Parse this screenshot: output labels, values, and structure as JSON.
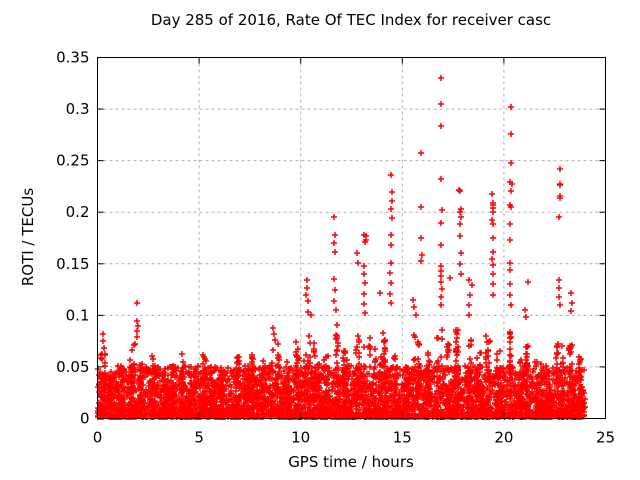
{
  "chart_data": {
    "type": "scatter",
    "title": "Day 285 of 2016, Rate Of TEC Index for receiver casc",
    "xlabel": "GPS time / hours",
    "ylabel": "ROTI / TECUs",
    "xlim": [
      0,
      25
    ],
    "ylim": [
      0,
      0.35
    ],
    "xticks": [
      0,
      5,
      10,
      15,
      20,
      25
    ],
    "xtick_labels": [
      "0",
      "5",
      "10",
      "15",
      "20",
      "25"
    ],
    "yticks": [
      0,
      0.05,
      0.1,
      0.15,
      0.2,
      0.25,
      0.3,
      0.35
    ],
    "ytick_labels": [
      "0",
      "0.05",
      "0.1",
      "0.15",
      "0.2",
      "0.25",
      "0.3",
      "0.35"
    ],
    "grid": true,
    "grid_style": "dashed",
    "legend_position": "none",
    "marker": "plus",
    "marker_color": "#ff0000",
    "grid_color": "#b0b0b0",
    "axis_color": "#000000",
    "background_color": "#ffffff",
    "x_data_range": [
      0,
      24
    ],
    "bin_width": 0.5,
    "points_per_bin": 110,
    "seed": 285,
    "density_envelope": [
      0.062,
      0.045,
      0.05,
      0.072,
      0.055,
      0.062,
      0.048,
      0.055,
      0.065,
      0.05,
      0.063,
      0.055,
      0.048,
      0.06,
      0.052,
      0.062,
      0.058,
      0.072,
      0.055,
      0.065,
      0.08,
      0.075,
      0.062,
      0.09,
      0.065,
      0.08,
      0.078,
      0.068,
      0.085,
      0.062,
      0.055,
      0.08,
      0.065,
      0.095,
      0.078,
      0.085,
      0.075,
      0.065,
      0.08,
      0.068,
      0.085,
      0.06,
      0.075,
      0.058,
      0.052,
      0.075,
      0.082,
      0.062
    ],
    "outliers": [
      [
        0.25,
        0.082
      ],
      [
        0.27,
        0.075
      ],
      [
        0.3,
        0.068
      ],
      [
        1.95,
        0.112
      ],
      [
        1.92,
        0.095
      ],
      [
        1.97,
        0.09
      ],
      [
        1.95,
        0.085
      ],
      [
        1.93,
        0.079
      ],
      [
        8.65,
        0.088
      ],
      [
        8.7,
        0.082
      ],
      [
        8.75,
        0.076
      ],
      [
        9.75,
        0.074
      ],
      [
        9.85,
        0.067
      ],
      [
        10.3,
        0.134
      ],
      [
        10.32,
        0.127
      ],
      [
        10.28,
        0.12
      ],
      [
        10.35,
        0.114
      ],
      [
        10.38,
        0.103
      ],
      [
        10.5,
        0.1
      ],
      [
        11.66,
        0.195
      ],
      [
        11.68,
        0.178
      ],
      [
        11.66,
        0.17
      ],
      [
        11.7,
        0.161
      ],
      [
        11.66,
        0.135
      ],
      [
        11.68,
        0.125
      ],
      [
        11.66,
        0.114
      ],
      [
        11.72,
        0.105
      ],
      [
        12.79,
        0.16
      ],
      [
        12.84,
        0.151
      ],
      [
        13.1,
        0.178
      ],
      [
        13.14,
        0.171
      ],
      [
        13.22,
        0.177
      ],
      [
        13.2,
        0.173
      ],
      [
        13.12,
        0.148
      ],
      [
        13.1,
        0.14
      ],
      [
        13.15,
        0.131
      ],
      [
        13.13,
        0.121
      ],
      [
        13.1,
        0.111
      ],
      [
        13.16,
        0.102
      ],
      [
        13.9,
        0.122
      ],
      [
        14.45,
        0.236
      ],
      [
        14.47,
        0.22
      ],
      [
        14.47,
        0.211
      ],
      [
        14.45,
        0.203
      ],
      [
        14.47,
        0.194
      ],
      [
        14.44,
        0.178
      ],
      [
        14.46,
        0.168
      ],
      [
        14.42,
        0.151
      ],
      [
        14.4,
        0.141
      ],
      [
        14.42,
        0.131
      ],
      [
        14.4,
        0.121
      ],
      [
        14.43,
        0.112
      ],
      [
        15.55,
        0.115
      ],
      [
        15.6,
        0.108
      ],
      [
        15.65,
        0.1
      ],
      [
        15.9,
        0.257
      ],
      [
        15.92,
        0.205
      ],
      [
        15.9,
        0.175
      ],
      [
        15.95,
        0.159
      ],
      [
        15.93,
        0.153
      ],
      [
        16.9,
        0.33
      ],
      [
        16.92,
        0.305
      ],
      [
        16.9,
        0.284
      ],
      [
        16.9,
        0.232
      ],
      [
        16.93,
        0.202
      ],
      [
        16.9,
        0.19
      ],
      [
        16.88,
        0.168
      ],
      [
        16.9,
        0.148
      ],
      [
        16.92,
        0.143
      ],
      [
        16.88,
        0.138
      ],
      [
        16.9,
        0.132
      ],
      [
        16.93,
        0.126
      ],
      [
        16.9,
        0.118
      ],
      [
        16.9,
        0.11
      ],
      [
        17.37,
        0.136
      ],
      [
        17.8,
        0.222
      ],
      [
        17.86,
        0.221
      ],
      [
        17.88,
        0.203
      ],
      [
        17.9,
        0.195
      ],
      [
        17.86,
        0.2
      ],
      [
        17.84,
        0.189
      ],
      [
        17.86,
        0.177
      ],
      [
        17.88,
        0.16
      ],
      [
        17.85,
        0.15
      ],
      [
        17.87,
        0.14
      ],
      [
        18.3,
        0.134
      ],
      [
        18.32,
        0.12
      ],
      [
        18.3,
        0.11
      ],
      [
        18.28,
        0.1
      ],
      [
        18.45,
        0.129
      ],
      [
        19.42,
        0.218
      ],
      [
        19.44,
        0.209
      ],
      [
        19.46,
        0.207
      ],
      [
        19.44,
        0.204
      ],
      [
        19.44,
        0.2
      ],
      [
        19.42,
        0.192
      ],
      [
        19.46,
        0.189
      ],
      [
        19.44,
        0.175
      ],
      [
        19.44,
        0.161
      ],
      [
        19.42,
        0.155
      ],
      [
        19.44,
        0.149
      ],
      [
        19.44,
        0.14
      ],
      [
        19.46,
        0.13
      ],
      [
        19.44,
        0.12
      ],
      [
        20.35,
        0.302
      ],
      [
        20.37,
        0.276
      ],
      [
        20.36,
        0.248
      ],
      [
        20.28,
        0.229
      ],
      [
        20.38,
        0.227
      ],
      [
        20.36,
        0.221
      ],
      [
        20.28,
        0.207
      ],
      [
        20.36,
        0.205
      ],
      [
        20.3,
        0.189
      ],
      [
        20.28,
        0.173
      ],
      [
        20.3,
        0.151
      ],
      [
        20.28,
        0.144
      ],
      [
        20.32,
        0.13
      ],
      [
        20.3,
        0.12
      ],
      [
        20.33,
        0.11
      ],
      [
        21.2,
        0.132
      ],
      [
        21.05,
        0.105
      ],
      [
        21.1,
        0.098
      ],
      [
        22.74,
        0.242
      ],
      [
        22.76,
        0.227
      ],
      [
        22.74,
        0.214
      ],
      [
        22.78,
        0.226
      ],
      [
        22.76,
        0.216
      ],
      [
        22.72,
        0.195
      ],
      [
        22.7,
        0.134
      ],
      [
        22.72,
        0.127
      ],
      [
        22.7,
        0.118
      ],
      [
        22.74,
        0.11
      ],
      [
        23.3,
        0.122
      ],
      [
        23.35,
        0.112
      ],
      [
        23.3,
        0.104
      ]
    ]
  }
}
